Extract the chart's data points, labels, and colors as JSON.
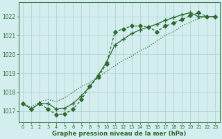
{
  "x": [
    0,
    1,
    2,
    3,
    4,
    5,
    6,
    7,
    8,
    9,
    10,
    11,
    12,
    13,
    14,
    15,
    16,
    17,
    18,
    19,
    20,
    21,
    22,
    23
  ],
  "line_dotted": [
    1017.4,
    1017.2,
    1017.5,
    1017.6,
    1017.5,
    1017.7,
    1018.0,
    1018.3,
    1018.5,
    1018.8,
    1019.1,
    1019.4,
    1019.7,
    1019.9,
    1020.2,
    1020.4,
    1020.7,
    1021.0,
    1021.2,
    1021.5,
    1021.7,
    1021.9,
    1022.0,
    1022.0
  ],
  "line_dashed_diamond": [
    1017.4,
    1017.1,
    1017.4,
    1017.1,
    1016.8,
    1016.85,
    1017.1,
    1017.6,
    1018.3,
    1018.8,
    1019.5,
    1021.2,
    1021.35,
    1021.5,
    1021.5,
    1021.45,
    1021.2,
    1021.5,
    1021.65,
    1021.85,
    1022.05,
    1022.2,
    1022.0,
    1022.0
  ],
  "line_solid_plus": [
    1017.4,
    1017.1,
    1017.4,
    1017.4,
    1017.1,
    1017.15,
    1017.4,
    1017.8,
    1018.3,
    1018.9,
    1019.6,
    1020.5,
    1020.8,
    1021.1,
    1021.3,
    1021.45,
    1021.6,
    1021.8,
    1021.95,
    1022.1,
    1022.2,
    1022.0,
    1022.0,
    1022.0
  ],
  "bg_color": "#d4eef0",
  "grid_color": "#aacdd0",
  "line_color": "#2d6a2d",
  "xlabel": "Graphe pression niveau de la mer (hPa)",
  "ylim_min": 1016.4,
  "ylim_max": 1022.75,
  "yticks": [
    1017,
    1018,
    1019,
    1020,
    1021,
    1022
  ],
  "xlim_min": -0.5,
  "xlim_max": 23.5
}
